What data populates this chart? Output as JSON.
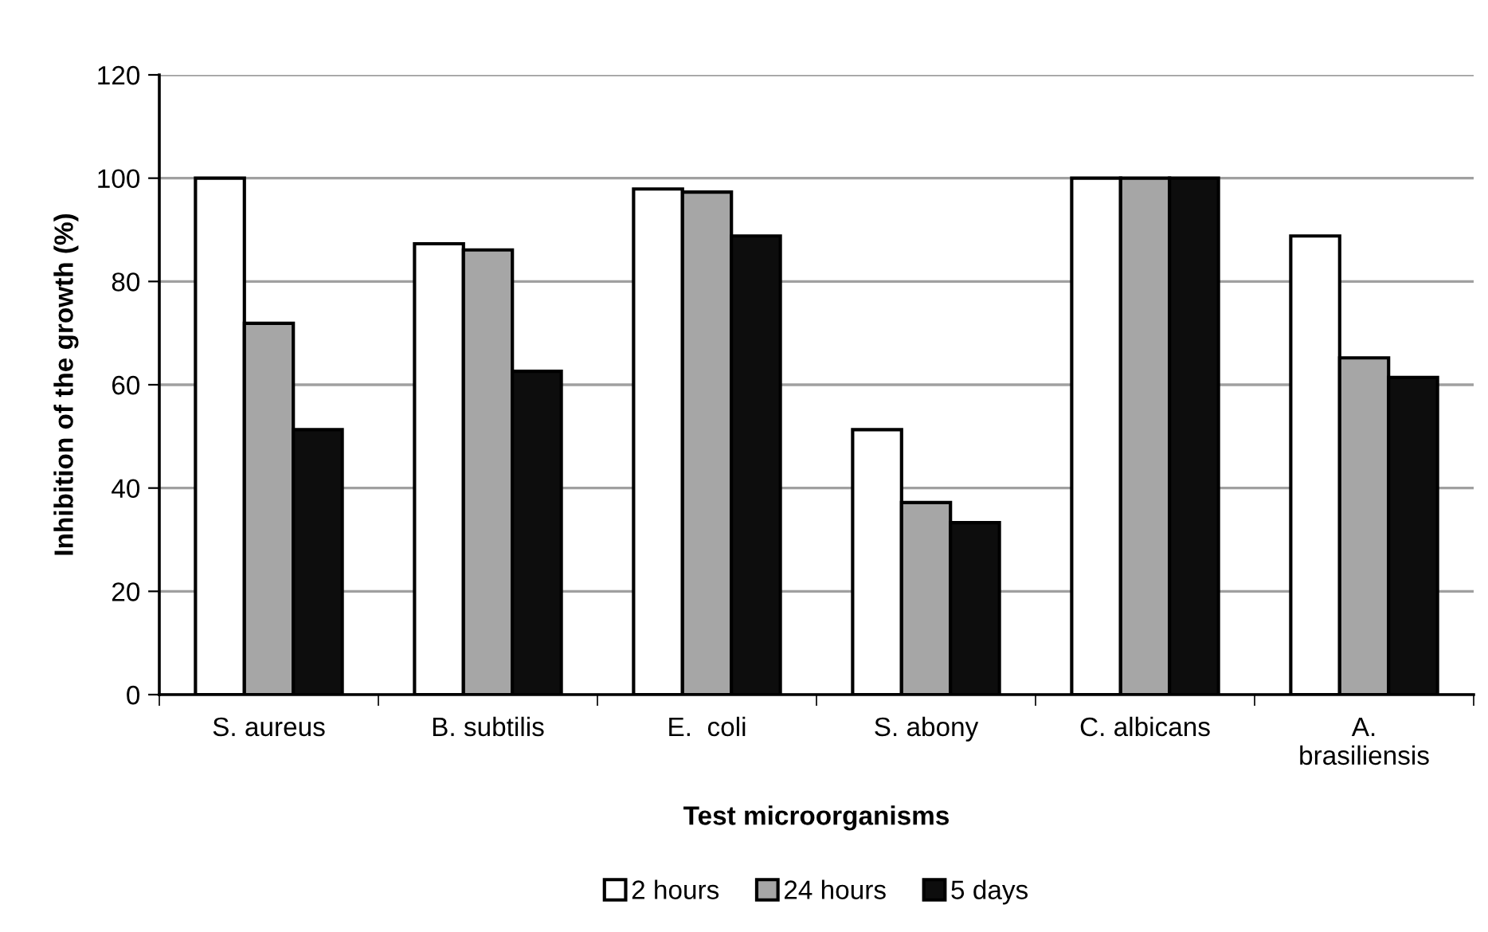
{
  "chart_data": {
    "type": "bar",
    "xlabel": "Test microorganisms",
    "ylabel": "Inhibition of the growth (%)",
    "categories": [
      "S. aureus",
      "B. subtilis",
      "E.  coli",
      "S. abony",
      "C. albicans",
      "A. brasiliensis"
    ],
    "series": [
      {
        "name": "2 hours",
        "color": "#ffffff",
        "values": [
          100,
          87.3,
          97.9,
          51.3,
          100,
          88.8
        ]
      },
      {
        "name": "24 hours",
        "color": "#a6a6a6",
        "values": [
          71.9,
          86.1,
          97.3,
          37.2,
          100,
          65.2
        ]
      },
      {
        "name": "5 days",
        "color": "#0d0d0d",
        "values": [
          51.3,
          62.6,
          88.8,
          33.3,
          100,
          61.4
        ]
      }
    ],
    "ylim": [
      0,
      120
    ],
    "yticks": [
      0,
      20,
      40,
      60,
      80,
      100,
      120
    ],
    "grid": "y",
    "legend": "bottom"
  }
}
